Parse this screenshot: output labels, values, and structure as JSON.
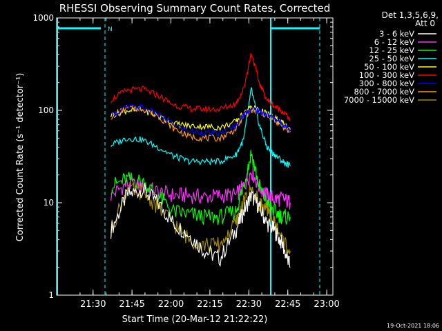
{
  "chart_data": {
    "type": "line",
    "title": "RHESSI Observing Summary Count Rates, Corrected",
    "xlabel": "Start Time (20-Mar-12 21:22:22)",
    "ylabel": "Corrected Count Rate (s⁻¹ detector⁻¹)",
    "yscale": "log",
    "ylim": [
      1,
      1000
    ],
    "xlim_minutes_after_start": [
      -6.4,
      100
    ],
    "x_ticks": [
      "21:30",
      "21:45",
      "22:00",
      "22:15",
      "22:30",
      "22:45",
      "23:00"
    ],
    "x_tick_minutes": [
      7.63,
      22.63,
      37.63,
      52.63,
      67.63,
      82.63,
      97.63
    ],
    "y_ticks": [
      "1",
      "10",
      "100",
      "1000"
    ],
    "y_tick_values": [
      1,
      10,
      100,
      1000
    ],
    "legend_title": [
      "Det 1,3,5,6,9,",
      "Att 0"
    ],
    "legend_position": "top-right, outside plot",
    "footer_date": "19-Oct-2021 18:06",
    "night_marker_label": "N",
    "grid": false,
    "x_minutes": [
      14.5,
      20.6,
      26.6,
      32.6,
      38.6,
      44.6,
      50.6,
      56.6,
      62.6,
      65.6,
      68.6,
      71.6,
      74.6,
      77.6,
      80.6,
      83.6
    ],
    "series": [
      {
        "name": "3 - 6 keV",
        "color": "#ffffff",
        "values": [
          5,
          12,
          14,
          10,
          6,
          4.5,
          3,
          2.5,
          5,
          8,
          12,
          9,
          6,
          5,
          3.5,
          2
        ]
      },
      {
        "name": "6 - 12 keV",
        "color": "#ff30ff",
        "values": [
          12,
          16,
          15,
          13,
          12,
          12,
          11.5,
          12,
          12,
          15,
          22,
          15,
          12,
          11,
          11,
          10
        ]
      },
      {
        "name": "12 - 25 keV",
        "color": "#00ff00",
        "values": [
          15,
          18,
          17,
          12,
          8,
          7.5,
          7,
          7,
          8,
          15,
          35,
          15,
          10,
          8,
          7,
          7
        ]
      },
      {
        "name": "25 - 50 keV",
        "color": "#00ffff",
        "values": [
          42,
          50,
          48,
          40,
          32,
          28,
          28,
          28,
          33,
          48,
          170,
          70,
          40,
          33,
          28,
          25
        ]
      },
      {
        "name": "50 - 100 keV",
        "color": "#ffff00",
        "values": [
          88,
          100,
          100,
          88,
          72,
          68,
          67,
          65,
          75,
          92,
          110,
          100,
          92,
          82,
          72,
          62
        ]
      },
      {
        "name": "100 - 300 keV",
        "color": "#ff0000",
        "values": [
          130,
          165,
          170,
          145,
          115,
          105,
          103,
          103,
          118,
          170,
          420,
          200,
          130,
          110,
          98,
          80
        ]
      },
      {
        "name": "300 - 800 keV",
        "color": "#0000ff",
        "values": [
          88,
          108,
          108,
          90,
          70,
          60,
          57,
          56,
          68,
          90,
          105,
          98,
          90,
          82,
          72,
          62
        ]
      },
      {
        "name": "800 - 7000 keV",
        "color": "#ff9900",
        "values": [
          85,
          105,
          105,
          87,
          64,
          52,
          50,
          50,
          63,
          87,
          100,
          95,
          87,
          78,
          68,
          58
        ]
      },
      {
        "name": "7000 - 15000 keV",
        "color": "#a08a00",
        "values": [
          5,
          14,
          13,
          9,
          6,
          4,
          3.5,
          3.5,
          6,
          10,
          14,
          10,
          8,
          6,
          4,
          3
        ]
      }
    ]
  }
}
